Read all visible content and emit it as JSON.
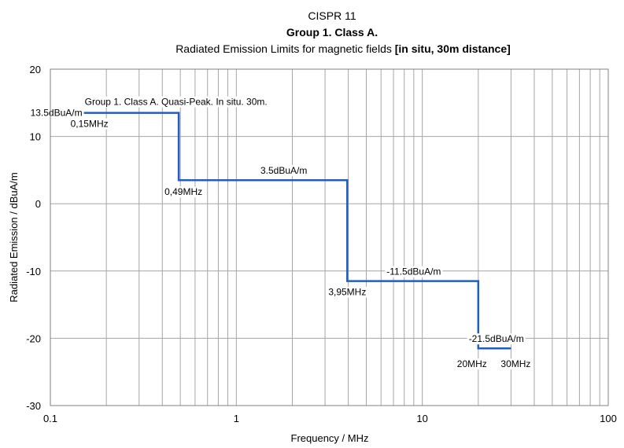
{
  "chart_data": {
    "type": "line",
    "title_lines": [
      "CISPR 11",
      "Group 1. Class A."
    ],
    "title_line3": {
      "prefix": "Radiated Emission Limits for magnetic fields ",
      "bold_suffix": "[in situ, 30m distance]"
    },
    "xlabel": "Frequency / MHz",
    "ylabel": "Radiated Emission / dBuA/m",
    "xscale": "log",
    "xlim": [
      0.1,
      100
    ],
    "ylim": [
      -30,
      20
    ],
    "grid": true,
    "x_tick_labels": [
      "0.1",
      "1",
      "10",
      "100"
    ],
    "y_tick_labels": [
      "20",
      "10",
      "0",
      "-10",
      "-20",
      "-30"
    ],
    "series": [
      {
        "name": "Group 1. Class A. Quasi-Peak. In situ. 30m.",
        "color": "#1f5fbf",
        "x": [
          0.15,
          0.49,
          0.49,
          3.95,
          3.95,
          20,
          20,
          30
        ],
        "y": [
          13.5,
          13.5,
          3.5,
          3.5,
          -11.5,
          -11.5,
          -21.5,
          -21.5
        ]
      }
    ],
    "annotations": [
      {
        "text": "13.5dBuA/m",
        "x": 0.15,
        "y": 13.5
      },
      {
        "text": "0,15MHz",
        "x": 0.15,
        "y": 13.5
      },
      {
        "text": "0,49MHz",
        "x": 0.49,
        "y": 3.5
      },
      {
        "text": "3.5dBuA/m",
        "x": 1.8,
        "y": 3.5
      },
      {
        "text": "3,95MHz",
        "x": 3.95,
        "y": -11.5
      },
      {
        "text": "-11.5dBuA/m",
        "x": 9.0,
        "y": -11.5
      },
      {
        "text": "20MHz",
        "x": 20,
        "y": -21.5
      },
      {
        "text": "30MHz",
        "x": 30,
        "y": -21.5
      },
      {
        "text": "-21.5dBuA/m",
        "x": 25,
        "y": -21.5
      }
    ]
  }
}
